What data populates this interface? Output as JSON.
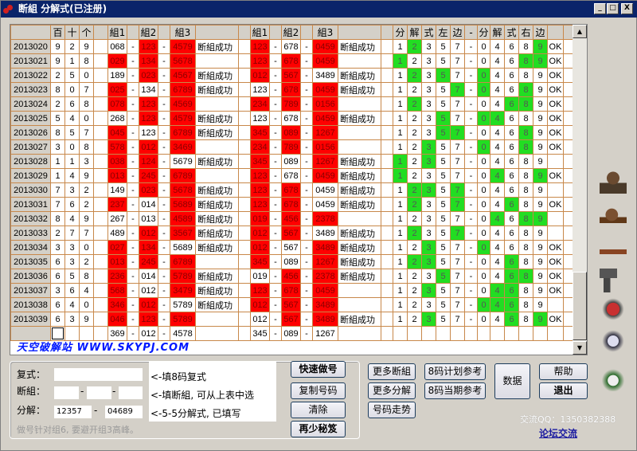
{
  "window": {
    "title": "断組 分解式(已注册)",
    "minimize": "_",
    "maximize": "□",
    "close": "X"
  },
  "watermark": "天空破解站 WWW.SKYPJ.COM",
  "headers": {
    "h": [
      "百",
      "十",
      "个"
    ],
    "g1": "組1",
    "g2": "組2",
    "g3": "組3",
    "fen": [
      "分",
      "解",
      "式",
      "左",
      "边",
      "-",
      "分",
      "解",
      "式",
      "右",
      "边"
    ]
  },
  "fenjie_digits": {
    "left": [
      "1",
      "2",
      "3",
      "5",
      "7"
    ],
    "right": [
      "0",
      "4",
      "6",
      "8",
      "9"
    ]
  },
  "colors": {
    "hit": "#ff0000",
    "green": "#22dd22",
    "title": "#0a246a"
  },
  "rows": [
    {
      "date": "2013020",
      "d": [
        "9",
        "2",
        "9"
      ],
      "L": {
        "g": [
          "068",
          "123",
          "4579"
        ],
        "h": [
          0,
          1,
          1
        ],
        "s": "断組成功"
      },
      "R": {
        "g": [
          "123",
          "678",
          "0459"
        ],
        "h": [
          1,
          0,
          1
        ],
        "s": "断組成功"
      },
      "fl": [
        "2"
      ],
      "fr": [
        "9"
      ],
      "ok": "OK"
    },
    {
      "date": "2013021",
      "d": [
        "9",
        "1",
        "8"
      ],
      "L": {
        "g": [
          "029",
          "134",
          "5678"
        ],
        "h": [
          1,
          1,
          1
        ],
        "s": ""
      },
      "R": {
        "g": [
          "123",
          "678",
          "0459"
        ],
        "h": [
          1,
          1,
          1
        ],
        "s": ""
      },
      "fl": [
        "1"
      ],
      "fr": [
        "8",
        "9"
      ],
      "ok": "OK"
    },
    {
      "date": "2013022",
      "d": [
        "2",
        "5",
        "0"
      ],
      "L": {
        "g": [
          "189",
          "023",
          "4567"
        ],
        "h": [
          0,
          1,
          1
        ],
        "s": "断組成功"
      },
      "R": {
        "g": [
          "012",
          "567",
          "3489"
        ],
        "h": [
          1,
          1,
          0
        ],
        "s": "断組成功"
      },
      "fl": [
        "2",
        "5"
      ],
      "fr": [
        "0"
      ],
      "ok": "OK"
    },
    {
      "date": "2013023",
      "d": [
        "8",
        "0",
        "7"
      ],
      "L": {
        "g": [
          "025",
          "134",
          "6789"
        ],
        "h": [
          1,
          0,
          1
        ],
        "s": "断組成功"
      },
      "R": {
        "g": [
          "123",
          "678",
          "0459"
        ],
        "h": [
          0,
          1,
          1
        ],
        "s": "断組成功"
      },
      "fl": [
        "7"
      ],
      "fr": [
        "0",
        "8"
      ],
      "ok": "OK"
    },
    {
      "date": "2013024",
      "d": [
        "2",
        "6",
        "8"
      ],
      "L": {
        "g": [
          "078",
          "123",
          "4569"
        ],
        "h": [
          1,
          1,
          1
        ],
        "s": ""
      },
      "R": {
        "g": [
          "234",
          "789",
          "0156"
        ],
        "h": [
          1,
          1,
          1
        ],
        "s": ""
      },
      "fl": [
        "2"
      ],
      "fr": [
        "6",
        "8"
      ],
      "ok": "OK"
    },
    {
      "date": "2013025",
      "d": [
        "5",
        "4",
        "0"
      ],
      "L": {
        "g": [
          "268",
          "123",
          "4579"
        ],
        "h": [
          0,
          1,
          1
        ],
        "s": "断組成功"
      },
      "R": {
        "g": [
          "123",
          "678",
          "0459"
        ],
        "h": [
          0,
          0,
          1
        ],
        "s": "断組成功"
      },
      "fl": [
        "5"
      ],
      "fr": [
        "0",
        "4"
      ],
      "ok": "OK"
    },
    {
      "date": "2013026",
      "d": [
        "8",
        "5",
        "7"
      ],
      "L": {
        "g": [
          "045",
          "123",
          "6789"
        ],
        "h": [
          1,
          0,
          1
        ],
        "s": "断組成功"
      },
      "R": {
        "g": [
          "345",
          "089",
          "1267"
        ],
        "h": [
          1,
          1,
          1
        ],
        "s": ""
      },
      "fl": [
        "5",
        "7"
      ],
      "fr": [
        "8"
      ],
      "ok": "OK"
    },
    {
      "date": "2013027",
      "d": [
        "3",
        "0",
        "8"
      ],
      "L": {
        "g": [
          "578",
          "012",
          "3469"
        ],
        "h": [
          1,
          1,
          1
        ],
        "s": ""
      },
      "R": {
        "g": [
          "234",
          "789",
          "0156"
        ],
        "h": [
          1,
          1,
          1
        ],
        "s": ""
      },
      "fl": [
        "3"
      ],
      "fr": [
        "0",
        "8"
      ],
      "ok": "OK"
    },
    {
      "date": "2013028",
      "d": [
        "1",
        "1",
        "3"
      ],
      "L": {
        "g": [
          "038",
          "124",
          "5679"
        ],
        "h": [
          1,
          1,
          0
        ],
        "s": "断組成功"
      },
      "R": {
        "g": [
          "345",
          "089",
          "1267"
        ],
        "h": [
          1,
          0,
          1
        ],
        "s": "断組成功"
      },
      "fl": [
        "1",
        "3"
      ],
      "fr": [],
      "ok": ""
    },
    {
      "date": "2013029",
      "d": [
        "1",
        "4",
        "9"
      ],
      "L": {
        "g": [
          "013",
          "245",
          "6789"
        ],
        "h": [
          1,
          1,
          1
        ],
        "s": ""
      },
      "R": {
        "g": [
          "123",
          "678",
          "0459"
        ],
        "h": [
          1,
          0,
          1
        ],
        "s": "断組成功"
      },
      "fl": [
        "1"
      ],
      "fr": [
        "4",
        "9"
      ],
      "ok": "OK"
    },
    {
      "date": "2013030",
      "d": [
        "7",
        "3",
        "2"
      ],
      "L": {
        "g": [
          "149",
          "023",
          "5678"
        ],
        "h": [
          0,
          1,
          1
        ],
        "s": "断組成功"
      },
      "R": {
        "g": [
          "123",
          "678",
          "0459"
        ],
        "h": [
          1,
          1,
          0
        ],
        "s": "断組成功"
      },
      "fl": [
        "2",
        "3",
        "7"
      ],
      "fr": [],
      "ok": ""
    },
    {
      "date": "2013031",
      "d": [
        "7",
        "6",
        "2"
      ],
      "L": {
        "g": [
          "237",
          "014",
          "5689"
        ],
        "h": [
          1,
          0,
          1
        ],
        "s": "断組成功"
      },
      "R": {
        "g": [
          "123",
          "678",
          "0459"
        ],
        "h": [
          1,
          1,
          0
        ],
        "s": "断組成功"
      },
      "fl": [
        "2",
        "7"
      ],
      "fr": [
        "6"
      ],
      "ok": "OK"
    },
    {
      "date": "2013032",
      "d": [
        "8",
        "4",
        "9"
      ],
      "L": {
        "g": [
          "267",
          "013",
          "4589"
        ],
        "h": [
          0,
          0,
          1
        ],
        "s": "断組成功"
      },
      "R": {
        "g": [
          "019",
          "456",
          "2378"
        ],
        "h": [
          1,
          1,
          1
        ],
        "s": ""
      },
      "fl": [],
      "fr": [
        "4",
        "8",
        "9"
      ],
      "ok": ""
    },
    {
      "date": "2013033",
      "d": [
        "2",
        "7",
        "7"
      ],
      "L": {
        "g": [
          "489",
          "012",
          "3567"
        ],
        "h": [
          0,
          1,
          1
        ],
        "s": "断組成功"
      },
      "R": {
        "g": [
          "012",
          "567",
          "3489"
        ],
        "h": [
          1,
          1,
          0
        ],
        "s": "断組成功"
      },
      "fl": [
        "2",
        "7"
      ],
      "fr": [],
      "ok": ""
    },
    {
      "date": "2013034",
      "d": [
        "3",
        "3",
        "0"
      ],
      "L": {
        "g": [
          "027",
          "134",
          "5689"
        ],
        "h": [
          1,
          1,
          0
        ],
        "s": "断組成功"
      },
      "R": {
        "g": [
          "012",
          "567",
          "3489"
        ],
        "h": [
          1,
          0,
          1
        ],
        "s": "断組成功"
      },
      "fl": [
        "3"
      ],
      "fr": [
        "0"
      ],
      "ok": "OK"
    },
    {
      "date": "2013035",
      "d": [
        "6",
        "3",
        "2"
      ],
      "L": {
        "g": [
          "013",
          "245",
          "6789"
        ],
        "h": [
          1,
          1,
          1
        ],
        "s": ""
      },
      "R": {
        "g": [
          "345",
          "089",
          "1267"
        ],
        "h": [
          1,
          0,
          1
        ],
        "s": "断組成功"
      },
      "fl": [
        "2",
        "3"
      ],
      "fr": [
        "6"
      ],
      "ok": "OK"
    },
    {
      "date": "2013036",
      "d": [
        "6",
        "5",
        "8"
      ],
      "L": {
        "g": [
          "236",
          "014",
          "5789"
        ],
        "h": [
          1,
          0,
          1
        ],
        "s": "断組成功"
      },
      "R": {
        "g": [
          "019",
          "456",
          "2378"
        ],
        "h": [
          0,
          1,
          1
        ],
        "s": "断組成功"
      },
      "fl": [
        "5"
      ],
      "fr": [
        "6",
        "8"
      ],
      "ok": "OK"
    },
    {
      "date": "2013037",
      "d": [
        "3",
        "6",
        "4"
      ],
      "L": {
        "g": [
          "568",
          "012",
          "3479"
        ],
        "h": [
          1,
          0,
          1
        ],
        "s": "断組成功"
      },
      "R": {
        "g": [
          "123",
          "678",
          "0459"
        ],
        "h": [
          1,
          1,
          1
        ],
        "s": ""
      },
      "fl": [
        "3"
      ],
      "fr": [
        "4",
        "6"
      ],
      "ok": "OK"
    },
    {
      "date": "2013038",
      "d": [
        "6",
        "4",
        "0"
      ],
      "L": {
        "g": [
          "346",
          "012",
          "5789"
        ],
        "h": [
          1,
          1,
          0
        ],
        "s": "断組成功"
      },
      "R": {
        "g": [
          "012",
          "567",
          "3489"
        ],
        "h": [
          1,
          1,
          1
        ],
        "s": ""
      },
      "fl": [],
      "fr": [
        "0",
        "4",
        "6"
      ],
      "ok": ""
    },
    {
      "date": "2013039",
      "d": [
        "6",
        "3",
        "9"
      ],
      "L": {
        "g": [
          "046",
          "123",
          "5789"
        ],
        "h": [
          1,
          1,
          1
        ],
        "s": ""
      },
      "R": {
        "g": [
          "012",
          "567",
          "3489"
        ],
        "h": [
          0,
          1,
          1
        ],
        "s": "断組成功"
      },
      "fl": [
        "3"
      ],
      "fr": [
        "6",
        "9"
      ],
      "ok": "OK"
    }
  ],
  "next": {
    "L": [
      "369",
      "012",
      "4578"
    ],
    "R": [
      "345",
      "089",
      "1267"
    ]
  },
  "form": {
    "fushi_label": "复式：",
    "fushi_value": "",
    "duanzu_label": "断組：",
    "duanzu_values": [
      "",
      "",
      ""
    ],
    "fenjie_label": "分解：",
    "fenjie_left": "12357",
    "fenjie_right": "04689",
    "dash": "-",
    "hint": "做号针对组6, 要避开组3高峰。"
  },
  "memo": [
    "<-填8码复式",
    "<-填断組, 可从上表中选",
    "<-5-5分解式, 已填写"
  ],
  "buttons": {
    "quick": "快速做号",
    "copy": "复制号码",
    "clear": "清除",
    "tips": "再少秘笈",
    "more_dz": "更多断組",
    "more_fj": "更多分解",
    "trend": "号码走势",
    "plan8": "8码计划参考",
    "cur8": "8码当期参考",
    "data": "数据",
    "help": "帮助",
    "exit": "退出"
  },
  "contact": "交流QQ：1350382388",
  "forum": "论坛交流"
}
